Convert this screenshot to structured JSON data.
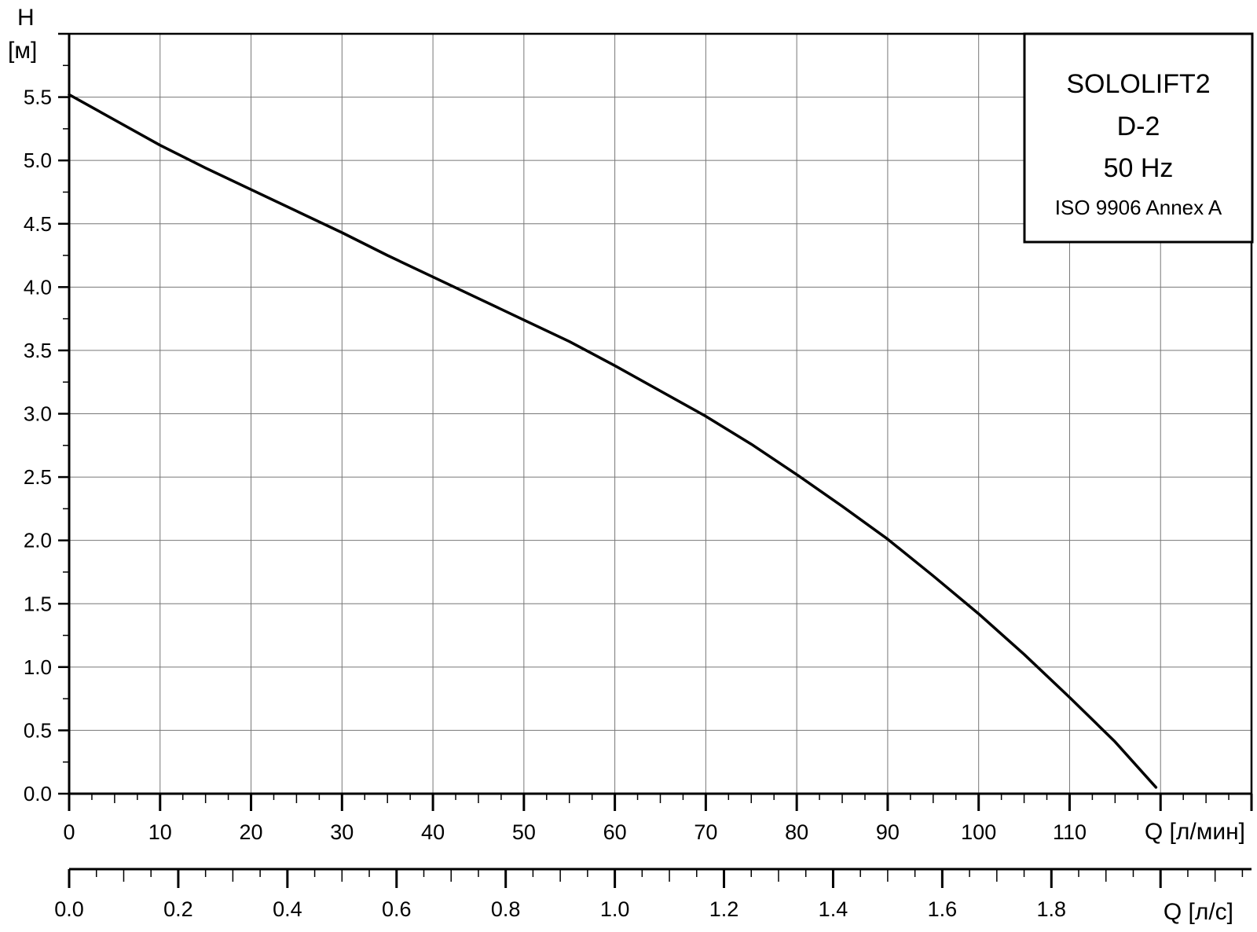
{
  "chart_data": {
    "type": "line",
    "ylabel": "H",
    "yunit": "[м]",
    "xlabel": "Q [л/мин]",
    "x2label": "Q [л/с]",
    "ylim": [
      0,
      6.0
    ],
    "xlim": [
      0,
      130
    ],
    "x2lim": [
      0,
      2.1667
    ],
    "grid": true,
    "y_ticks": [
      "0.0",
      "0.5",
      "1.0",
      "1.5",
      "2.0",
      "2.5",
      "3.0",
      "3.5",
      "4.0",
      "4.5",
      "5.0",
      "5.5"
    ],
    "x_ticks": [
      "0",
      "10",
      "20",
      "30",
      "40",
      "50",
      "60",
      "70",
      "80",
      "90",
      "100",
      "110"
    ],
    "x2_ticks": [
      "0.0",
      "0.2",
      "0.4",
      "0.6",
      "0.8",
      "1.0",
      "1.2",
      "1.4",
      "1.6",
      "1.8"
    ],
    "legend": {
      "lines": [
        "SOLOLIFT2",
        "D-2",
        "50 Hz",
        "ISO 9906 Annex A"
      ],
      "placement": "top-right"
    },
    "series": [
      {
        "x": [
          0,
          5,
          10,
          15,
          20,
          25,
          30,
          35,
          40,
          45,
          50,
          55,
          60,
          65,
          70,
          75,
          80,
          85,
          90,
          95,
          100,
          105,
          110,
          115,
          119.5
        ],
        "y": [
          5.52,
          5.32,
          5.12,
          4.94,
          4.77,
          4.6,
          4.43,
          4.25,
          4.08,
          3.91,
          3.74,
          3.57,
          3.38,
          3.18,
          2.98,
          2.76,
          2.52,
          2.27,
          2.01,
          1.72,
          1.42,
          1.1,
          0.76,
          0.41,
          0.05
        ]
      }
    ]
  }
}
